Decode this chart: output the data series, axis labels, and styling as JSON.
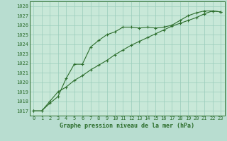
{
  "title": "Graphe pression niveau de la mer (hPa)",
  "bg_color": "#b8ddd0",
  "plot_bg_color": "#c8e8d8",
  "grid_color": "#99ccbb",
  "line_color": "#2d6e2d",
  "line1_x": [
    0,
    1,
    2,
    3,
    4,
    5,
    6,
    7,
    8,
    9,
    10,
    11,
    12,
    13,
    14,
    15,
    16,
    17,
    18,
    19,
    20,
    21,
    22,
    23
  ],
  "line1_y": [
    1017.0,
    1017.0,
    1017.8,
    1018.5,
    1020.4,
    1021.9,
    1021.9,
    1023.7,
    1024.4,
    1025.0,
    1025.3,
    1025.8,
    1025.8,
    1025.7,
    1025.8,
    1025.7,
    1025.8,
    1026.0,
    1026.5,
    1027.0,
    1027.3,
    1027.5,
    1027.5,
    1027.4
  ],
  "line2_x": [
    0,
    1,
    2,
    3,
    4,
    5,
    6,
    7,
    8,
    9,
    10,
    11,
    12,
    13,
    14,
    15,
    16,
    17,
    18,
    19,
    20,
    21,
    22,
    23
  ],
  "line2_y": [
    1017.0,
    1017.0,
    1018.0,
    1019.0,
    1019.5,
    1020.2,
    1020.7,
    1021.3,
    1021.8,
    1022.3,
    1022.9,
    1023.4,
    1023.9,
    1024.3,
    1024.7,
    1025.1,
    1025.5,
    1025.9,
    1026.2,
    1026.5,
    1026.8,
    1027.2,
    1027.5,
    1027.4
  ],
  "xlim": [
    -0.5,
    23.5
  ],
  "ylim": [
    1016.5,
    1028.5
  ],
  "yticks": [
    1017,
    1018,
    1019,
    1020,
    1021,
    1022,
    1023,
    1024,
    1025,
    1026,
    1027,
    1028
  ],
  "xticks": [
    0,
    1,
    2,
    3,
    4,
    5,
    6,
    7,
    8,
    9,
    10,
    11,
    12,
    13,
    14,
    15,
    16,
    17,
    18,
    19,
    20,
    21,
    22,
    23
  ],
  "marker": "+",
  "marker_size": 3,
  "line_width": 0.8,
  "font_family": "monospace",
  "tick_fontsize": 5,
  "xlabel_fontsize": 6
}
